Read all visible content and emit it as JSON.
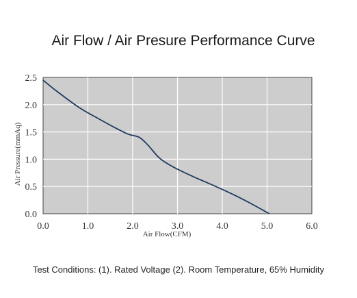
{
  "chart_data": {
    "type": "line",
    "title": "Air Flow / Air Presure Performance Curve",
    "xlabel": "Air Flow(CFM)",
    "ylabel": "Air Pressure(mmAq)",
    "xlim": [
      0,
      6
    ],
    "ylim": [
      0,
      2.5
    ],
    "x_ticks": [
      "0.0",
      "1.0",
      "2.0",
      "3.0",
      "4.0",
      "5.0",
      "6.0"
    ],
    "y_ticks": [
      "0.0",
      "0.5",
      "1.0",
      "1.5",
      "2.0",
      "2.5"
    ],
    "grid": true,
    "series": [
      {
        "color": "#1f3a5f",
        "points": [
          [
            0.0,
            2.45
          ],
          [
            0.3,
            2.25
          ],
          [
            0.8,
            1.95
          ],
          [
            1.2,
            1.76
          ],
          [
            1.6,
            1.58
          ],
          [
            1.9,
            1.46
          ],
          [
            2.15,
            1.4
          ],
          [
            2.35,
            1.25
          ],
          [
            2.6,
            1.02
          ],
          [
            2.9,
            0.86
          ],
          [
            3.3,
            0.7
          ],
          [
            3.8,
            0.52
          ],
          [
            4.3,
            0.33
          ],
          [
            4.7,
            0.16
          ],
          [
            5.05,
            0.0
          ]
        ]
      }
    ]
  },
  "footnote": "Test Conditions:  (1). Rated Voltage (2). Room Temperature, 65% Humidity"
}
